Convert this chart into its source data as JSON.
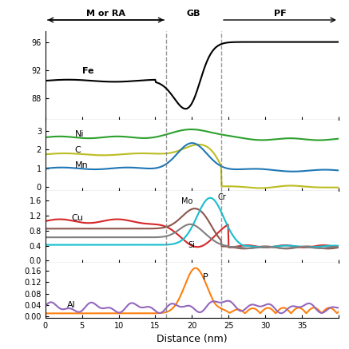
{
  "x_max": 40,
  "dashed_lines": [
    16.5,
    24.0
  ],
  "region_labels": [
    "M or RA",
    "GB",
    "PF"
  ],
  "region_arrows": [
    {
      "text": "M or RA",
      "x": 8,
      "arrow_left": true
    },
    {
      "text": "GB",
      "x": 20
    },
    {
      "text": "PF",
      "x": 32,
      "arrow_right": true
    }
  ],
  "panel1": {
    "yticks": [
      88,
      92,
      96
    ],
    "ylim": [
      85,
      97.5
    ],
    "ylabel": "",
    "series": [
      {
        "label": "Fe",
        "color": "#000000",
        "baseline": 90.5,
        "type": "fe"
      }
    ]
  },
  "panel2": {
    "yticks": [
      0,
      1,
      2,
      3
    ],
    "ylim": [
      -0.2,
      3.6
    ],
    "series": [
      {
        "label": "Ni",
        "color": "#2ca02c",
        "baseline": 2.65,
        "type": "ni"
      },
      {
        "label": "C",
        "color": "#bcbd22",
        "baseline": 1.75,
        "type": "c"
      },
      {
        "label": "Mn",
        "color": "#1f77b4",
        "baseline": 1.0,
        "type": "mn"
      }
    ]
  },
  "panel3": {
    "yticks": [
      0.0,
      0.4,
      0.8,
      1.2,
      1.6
    ],
    "ylim": [
      -0.05,
      1.85
    ],
    "series": [
      {
        "label": "Cu",
        "color": "#d62728",
        "baseline": 1.05,
        "type": "cu"
      },
      {
        "label": "Mo",
        "color": "#8c564b",
        "baseline": 0.85,
        "type": "mo"
      },
      {
        "label": "Cr",
        "color": "#17becf",
        "baseline": 0.42,
        "type": "cr"
      },
      {
        "label": "Si",
        "color": "#7f7f7f",
        "baseline": 0.62,
        "type": "si"
      }
    ]
  },
  "panel4": {
    "yticks": [
      0.0,
      0.04,
      0.08,
      0.12,
      0.16
    ],
    "ylim": [
      -0.005,
      0.19
    ],
    "series": [
      {
        "label": "P",
        "color": "#ff7f0e",
        "baseline": 0.01,
        "type": "p"
      },
      {
        "label": "Al",
        "color": "#9467bd",
        "baseline": 0.03,
        "type": "al"
      }
    ]
  },
  "xlabel": "Distance (nm)",
  "background": "#ffffff"
}
